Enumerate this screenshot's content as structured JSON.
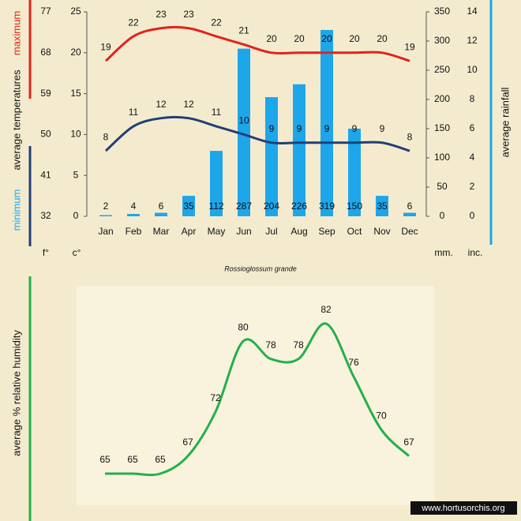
{
  "chart_data": [
    {
      "type": "bar",
      "subtitle": "Rossioglossum grande",
      "categories": [
        "Jan",
        "Feb",
        "Mar",
        "Apr",
        "May",
        "Jun",
        "Jul",
        "Aug",
        "Sep",
        "Oct",
        "Nov",
        "Dec"
      ],
      "series": [
        {
          "name": "maximum",
          "type": "line",
          "color": "#e2231a",
          "values": [
            19,
            22,
            23,
            23,
            22,
            21,
            20,
            20,
            20,
            20,
            20,
            19
          ]
        },
        {
          "name": "minimum",
          "type": "line",
          "color": "#213f78",
          "values": [
            8,
            11,
            12,
            12,
            11,
            10,
            9,
            9,
            9,
            9,
            9,
            8
          ]
        },
        {
          "name": "average rainfall",
          "type": "bar",
          "axis": "y2",
          "color": "#1ea6ea",
          "values": [
            2,
            4,
            6,
            35,
            112,
            287,
            204,
            226,
            319,
            150,
            35,
            6
          ]
        }
      ],
      "ylabel": "average temperatures",
      "ylim": [
        0,
        25
      ],
      "yticks": [
        0,
        5,
        10,
        15,
        20,
        25
      ],
      "yunit": "c°",
      "fahrenheit_lim": [
        32,
        77
      ],
      "fahrenheit_ticks": [
        32,
        41,
        50,
        59,
        68,
        77
      ],
      "fahrenheit_unit": "f°",
      "y2lim": [
        0,
        350
      ],
      "y2ticks": [
        0,
        50,
        100,
        150,
        200,
        250,
        300,
        350
      ],
      "y2unit": "mm.",
      "inch_lim": [
        0,
        14
      ],
      "inch_ticks": [
        0,
        2,
        4,
        6,
        8,
        10,
        12,
        14
      ],
      "inch_unit": "inc."
    },
    {
      "type": "line",
      "ylabel": "average % relative humidity",
      "color": "#22b04b",
      "values": [
        65,
        65,
        65,
        67,
        72,
        80,
        78,
        78,
        82,
        76,
        70,
        67
      ]
    }
  ],
  "footer": "www.hortusorchis.org"
}
